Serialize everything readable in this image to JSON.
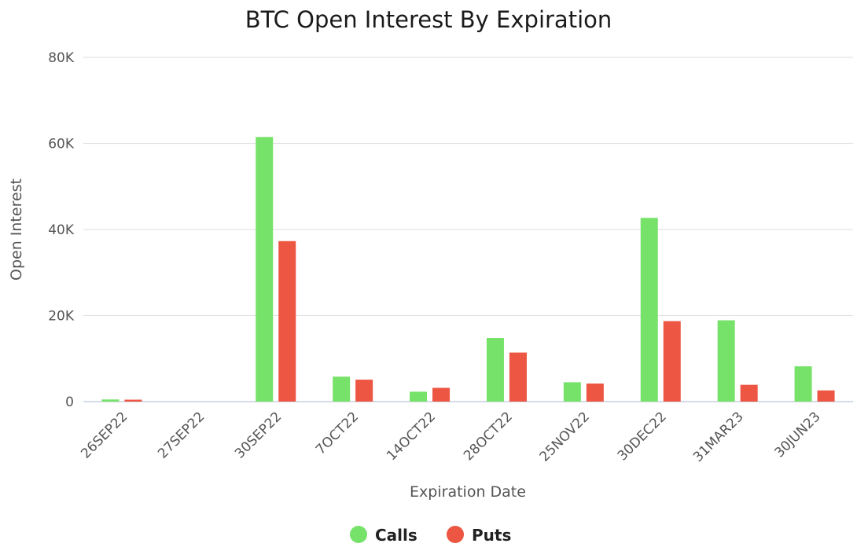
{
  "chart_data": {
    "type": "bar",
    "title": "BTC Open Interest By Expiration",
    "xlabel": "Expiration Date",
    "ylabel": "Open Interest",
    "ylim": [
      0,
      80000
    ],
    "yticks": [
      {
        "value": 0,
        "label": "0"
      },
      {
        "value": 20000,
        "label": "20K"
      },
      {
        "value": 40000,
        "label": "40K"
      },
      {
        "value": 60000,
        "label": "60K"
      },
      {
        "value": 80000,
        "label": "80K"
      }
    ],
    "categories": [
      "26SEP22",
      "27SEP22",
      "30SEP22",
      "7OCT22",
      "14OCT22",
      "28OCT22",
      "25NOV22",
      "30DEC22",
      "31MAR23",
      "30JUN23"
    ],
    "series": [
      {
        "name": "Calls",
        "color": "#77e26a",
        "values": [
          500,
          0,
          61500,
          5800,
          2300,
          14800,
          4500,
          42700,
          18900,
          8200
        ]
      },
      {
        "name": "Puts",
        "color": "#ec5642",
        "values": [
          450,
          0,
          37300,
          5100,
          3200,
          11400,
          4200,
          18700,
          3900,
          2600
        ]
      }
    ],
    "grid": true,
    "legend": "bottom-center"
  }
}
